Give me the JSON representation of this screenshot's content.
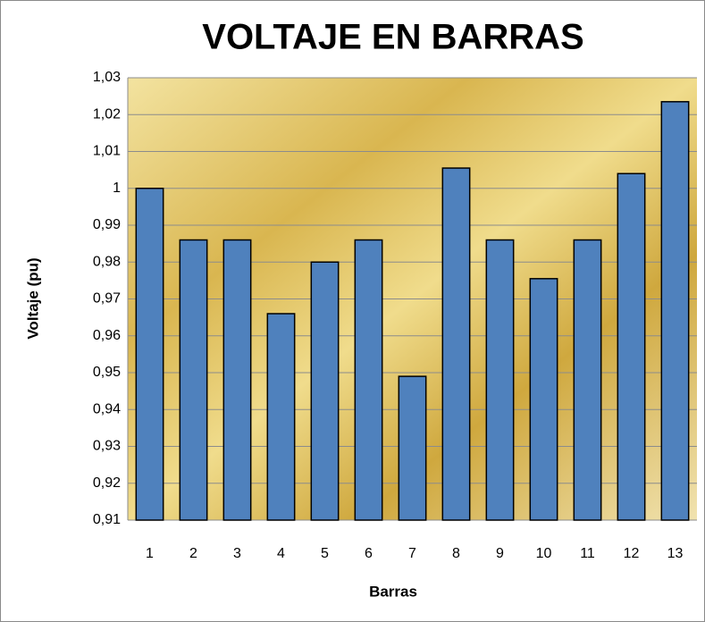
{
  "chart_data": {
    "type": "bar",
    "title": "VOLTAJE EN BARRAS",
    "x_label": "Barras",
    "y_label": "Voltaje (pu)",
    "categories": [
      "1",
      "2",
      "3",
      "4",
      "5",
      "6",
      "7",
      "8",
      "9",
      "10",
      "11",
      "12",
      "13"
    ],
    "values": [
      1.0,
      0.986,
      0.986,
      0.966,
      0.98,
      0.986,
      0.949,
      1.0055,
      0.986,
      0.9755,
      0.986,
      1.004,
      1.0235
    ],
    "color": "#4f81bd",
    "ylim": [
      0.91,
      1.03
    ],
    "yticks": [
      {
        "value": 0.91,
        "label": "0,91"
      },
      {
        "value": 0.92,
        "label": "0,92"
      },
      {
        "value": 0.93,
        "label": "0,93"
      },
      {
        "value": 0.94,
        "label": "0,94"
      },
      {
        "value": 0.95,
        "label": "0,95"
      },
      {
        "value": 0.96,
        "label": "0,96"
      },
      {
        "value": 0.97,
        "label": "0,97"
      },
      {
        "value": 0.98,
        "label": "0,98"
      },
      {
        "value": 0.99,
        "label": "0,99"
      },
      1,
      {
        "value": 1.01,
        "label": "1,01"
      },
      {
        "value": 1.02,
        "label": "1,02"
      },
      {
        "value": 1.03,
        "label": "1,03"
      }
    ],
    "grid": true
  }
}
